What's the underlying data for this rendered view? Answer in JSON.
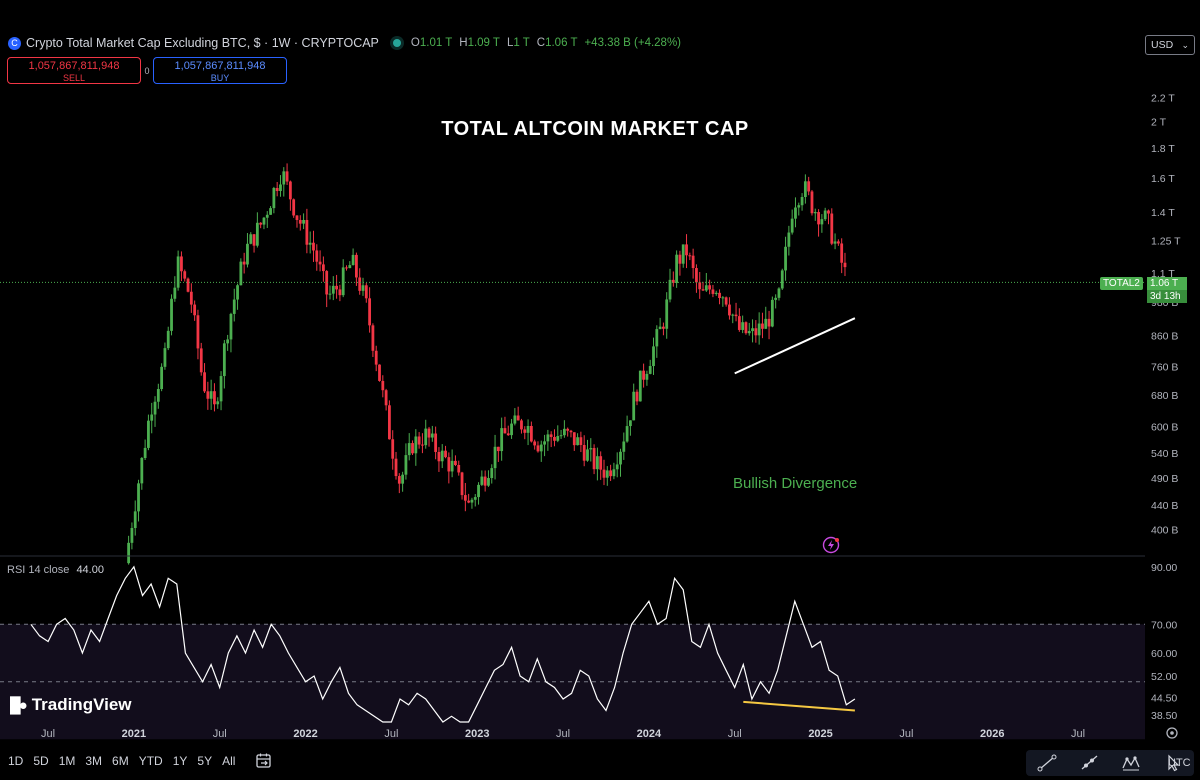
{
  "header": {
    "symbol_title": "Crypto Total Market Cap Excluding BTC, $ · 1W · CRYPTOCAP",
    "ohlc": {
      "o_label": "O",
      "o": "1.01 T",
      "h_label": "H",
      "h": "1.09 T",
      "l_label": "L",
      "l": "1 T",
      "c_label": "C",
      "c": "1.06 T",
      "change": "+43.38 B (+4.28%)"
    },
    "sell_value": "1,057,867,811,948",
    "sell_label": "SELL",
    "spread": "0",
    "buy_value": "1,057,867,811,948",
    "buy_label": "BUY",
    "currency": "USD"
  },
  "chart_data": {
    "type": "candlestick",
    "title": "TOTAL ALTCOIN MARKET CAP",
    "annotation": "Bullish Divergence",
    "y_scale": "log",
    "ylim": [
      360,
      2300
    ],
    "y_ticks": [
      {
        "v": 2200,
        "label": "2.2 T"
      },
      {
        "v": 2000,
        "label": "2 T"
      },
      {
        "v": 1800,
        "label": "1.8 T"
      },
      {
        "v": 1600,
        "label": "1.6 T"
      },
      {
        "v": 1400,
        "label": "1.4 T"
      },
      {
        "v": 1250,
        "label": "1.25 T"
      },
      {
        "v": 1100,
        "label": "1.1 T"
      },
      {
        "v": 980,
        "label": "980 B"
      },
      {
        "v": 860,
        "label": "860 B"
      },
      {
        "v": 760,
        "label": "760 B"
      },
      {
        "v": 680,
        "label": "680 B"
      },
      {
        "v": 600,
        "label": "600 B"
      },
      {
        "v": 540,
        "label": "540 B"
      },
      {
        "v": 490,
        "label": "490 B"
      },
      {
        "v": 440,
        "label": "440 B"
      },
      {
        "v": 400,
        "label": "400 B"
      }
    ],
    "x_labels": [
      {
        "t": 2020.5,
        "label": "Jul"
      },
      {
        "t": 2021.0,
        "label": "2021"
      },
      {
        "t": 2021.5,
        "label": "Jul"
      },
      {
        "t": 2022.0,
        "label": "2022"
      },
      {
        "t": 2022.5,
        "label": "Jul"
      },
      {
        "t": 2023.0,
        "label": "2023"
      },
      {
        "t": 2023.5,
        "label": "Jul"
      },
      {
        "t": 2024.0,
        "label": "2024"
      },
      {
        "t": 2024.5,
        "label": "Jul"
      },
      {
        "t": 2025.0,
        "label": "2025"
      },
      {
        "t": 2025.5,
        "label": "Jul"
      },
      {
        "t": 2026.0,
        "label": "2026"
      },
      {
        "t": 2026.5,
        "label": "Jul"
      }
    ],
    "close_path": [
      [
        2020.95,
        350
      ],
      [
        2021.02,
        470
      ],
      [
        2021.1,
        650
      ],
      [
        2021.18,
        780
      ],
      [
        2021.25,
        1150
      ],
      [
        2021.33,
        1000
      ],
      [
        2021.4,
        720
      ],
      [
        2021.47,
        640
      ],
      [
        2021.55,
        900
      ],
      [
        2021.65,
        1200
      ],
      [
        2021.75,
        1350
      ],
      [
        2021.86,
        1650
      ],
      [
        2021.95,
        1380
      ],
      [
        2022.05,
        1200
      ],
      [
        2022.13,
        1000
      ],
      [
        2022.2,
        1050
      ],
      [
        2022.27,
        1150
      ],
      [
        2022.35,
        980
      ],
      [
        2022.42,
        760
      ],
      [
        2022.5,
        560
      ],
      [
        2022.55,
        480
      ],
      [
        2022.62,
        560
      ],
      [
        2022.7,
        580
      ],
      [
        2022.78,
        540
      ],
      [
        2022.86,
        510
      ],
      [
        2022.95,
        440
      ],
      [
        2023.05,
        500
      ],
      [
        2023.12,
        560
      ],
      [
        2023.2,
        600
      ],
      [
        2023.28,
        610
      ],
      [
        2023.36,
        560
      ],
      [
        2023.44,
        580
      ],
      [
        2023.52,
        580
      ],
      [
        2023.6,
        560
      ],
      [
        2023.68,
        520
      ],
      [
        2023.76,
        500
      ],
      [
        2023.84,
        560
      ],
      [
        2023.92,
        680
      ],
      [
        2024.0,
        780
      ],
      [
        2024.08,
        900
      ],
      [
        2024.16,
        1150
      ],
      [
        2024.22,
        1200
      ],
      [
        2024.3,
        1000
      ],
      [
        2024.38,
        1050
      ],
      [
        2024.45,
        1000
      ],
      [
        2024.52,
        880
      ],
      [
        2024.6,
        860
      ],
      [
        2024.68,
        900
      ],
      [
        2024.76,
        1000
      ],
      [
        2024.84,
        1450
      ],
      [
        2024.9,
        1550
      ],
      [
        2024.96,
        1420
      ],
      [
        2025.04,
        1350
      ],
      [
        2025.1,
        1200
      ],
      [
        2025.16,
        1060
      ]
    ],
    "last": {
      "symbol": "TOTAL2",
      "price": "1.06 T",
      "countdown": "3d 13h"
    },
    "trendline": [
      [
        2024.5,
        740
      ],
      [
        2025.2,
        920
      ]
    ],
    "rsi": {
      "legend": "RSI 14 close",
      "value": "44.00",
      "ylim": [
        36,
        92
      ],
      "levels": [
        70,
        50
      ],
      "y_ticks": [
        {
          "v": 90,
          "label": "90.00"
        },
        {
          "v": 70,
          "label": "70.00"
        },
        {
          "v": 60,
          "label": "60.00"
        },
        {
          "v": 52,
          "label": "52.00"
        },
        {
          "v": 44.5,
          "label": "44.50"
        },
        {
          "v": 38.5,
          "label": "38.50"
        }
      ],
      "values": [
        [
          2020.4,
          70
        ],
        [
          2020.45,
          66
        ],
        [
          2020.5,
          64
        ],
        [
          2020.55,
          70
        ],
        [
          2020.6,
          72
        ],
        [
          2020.65,
          68
        ],
        [
          2020.7,
          60
        ],
        [
          2020.75,
          68
        ],
        [
          2020.8,
          64
        ],
        [
          2020.85,
          72
        ],
        [
          2020.9,
          80
        ],
        [
          2020.95,
          86
        ],
        [
          2021.0,
          90
        ],
        [
          2021.05,
          80
        ],
        [
          2021.1,
          84
        ],
        [
          2021.15,
          76
        ],
        [
          2021.2,
          86
        ],
        [
          2021.25,
          84
        ],
        [
          2021.3,
          60
        ],
        [
          2021.35,
          55
        ],
        [
          2021.4,
          50
        ],
        [
          2021.45,
          56
        ],
        [
          2021.5,
          48
        ],
        [
          2021.55,
          60
        ],
        [
          2021.6,
          66
        ],
        [
          2021.65,
          60
        ],
        [
          2021.7,
          68
        ],
        [
          2021.75,
          62
        ],
        [
          2021.8,
          70
        ],
        [
          2021.85,
          66
        ],
        [
          2021.9,
          60
        ],
        [
          2021.95,
          55
        ],
        [
          2022.0,
          50
        ],
        [
          2022.05,
          52
        ],
        [
          2022.1,
          44
        ],
        [
          2022.15,
          50
        ],
        [
          2022.2,
          55
        ],
        [
          2022.25,
          46
        ],
        [
          2022.3,
          42
        ],
        [
          2022.35,
          40
        ],
        [
          2022.4,
          38
        ],
        [
          2022.45,
          34
        ],
        [
          2022.5,
          33
        ],
        [
          2022.55,
          44
        ],
        [
          2022.6,
          42
        ],
        [
          2022.65,
          46
        ],
        [
          2022.7,
          44
        ],
        [
          2022.75,
          40
        ],
        [
          2022.8,
          36
        ],
        [
          2022.85,
          38
        ],
        [
          2022.9,
          34
        ],
        [
          2022.95,
          36
        ],
        [
          2023.0,
          42
        ],
        [
          2023.05,
          48
        ],
        [
          2023.1,
          54
        ],
        [
          2023.15,
          56
        ],
        [
          2023.2,
          62
        ],
        [
          2023.25,
          52
        ],
        [
          2023.3,
          50
        ],
        [
          2023.35,
          58
        ],
        [
          2023.4,
          50
        ],
        [
          2023.45,
          48
        ],
        [
          2023.5,
          44
        ],
        [
          2023.55,
          46
        ],
        [
          2023.6,
          54
        ],
        [
          2023.65,
          52
        ],
        [
          2023.7,
          44
        ],
        [
          2023.75,
          40
        ],
        [
          2023.8,
          48
        ],
        [
          2023.85,
          60
        ],
        [
          2023.9,
          70
        ],
        [
          2023.95,
          74
        ],
        [
          2024.0,
          78
        ],
        [
          2024.05,
          70
        ],
        [
          2024.1,
          72
        ],
        [
          2024.15,
          86
        ],
        [
          2024.2,
          82
        ],
        [
          2024.25,
          64
        ],
        [
          2024.3,
          62
        ],
        [
          2024.35,
          70
        ],
        [
          2024.4,
          60
        ],
        [
          2024.45,
          54
        ],
        [
          2024.5,
          48
        ],
        [
          2024.55,
          56
        ],
        [
          2024.6,
          44
        ],
        [
          2024.65,
          50
        ],
        [
          2024.7,
          46
        ],
        [
          2024.75,
          54
        ],
        [
          2024.8,
          66
        ],
        [
          2024.85,
          78
        ],
        [
          2024.9,
          70
        ],
        [
          2024.95,
          62
        ],
        [
          2025.0,
          64
        ],
        [
          2025.05,
          54
        ],
        [
          2025.1,
          52
        ],
        [
          2025.15,
          42
        ],
        [
          2025.2,
          44
        ]
      ],
      "trendline": [
        [
          2024.55,
          43
        ],
        [
          2025.2,
          40
        ]
      ]
    },
    "grid": false
  },
  "bottombar": {
    "ranges": [
      "1D",
      "5D",
      "1M",
      "3M",
      "6M",
      "YTD",
      "1Y",
      "5Y",
      "All"
    ],
    "timezone": "UTC"
  },
  "branding": "TradingView",
  "colors": {
    "up": "#4caf50",
    "down": "#f23645",
    "rsi_line": "#ffffff",
    "rsi_band": "#120d1c",
    "trend_price": "#ffffff",
    "trend_rsi": "#f5c842",
    "annotation": "#4caf50"
  }
}
